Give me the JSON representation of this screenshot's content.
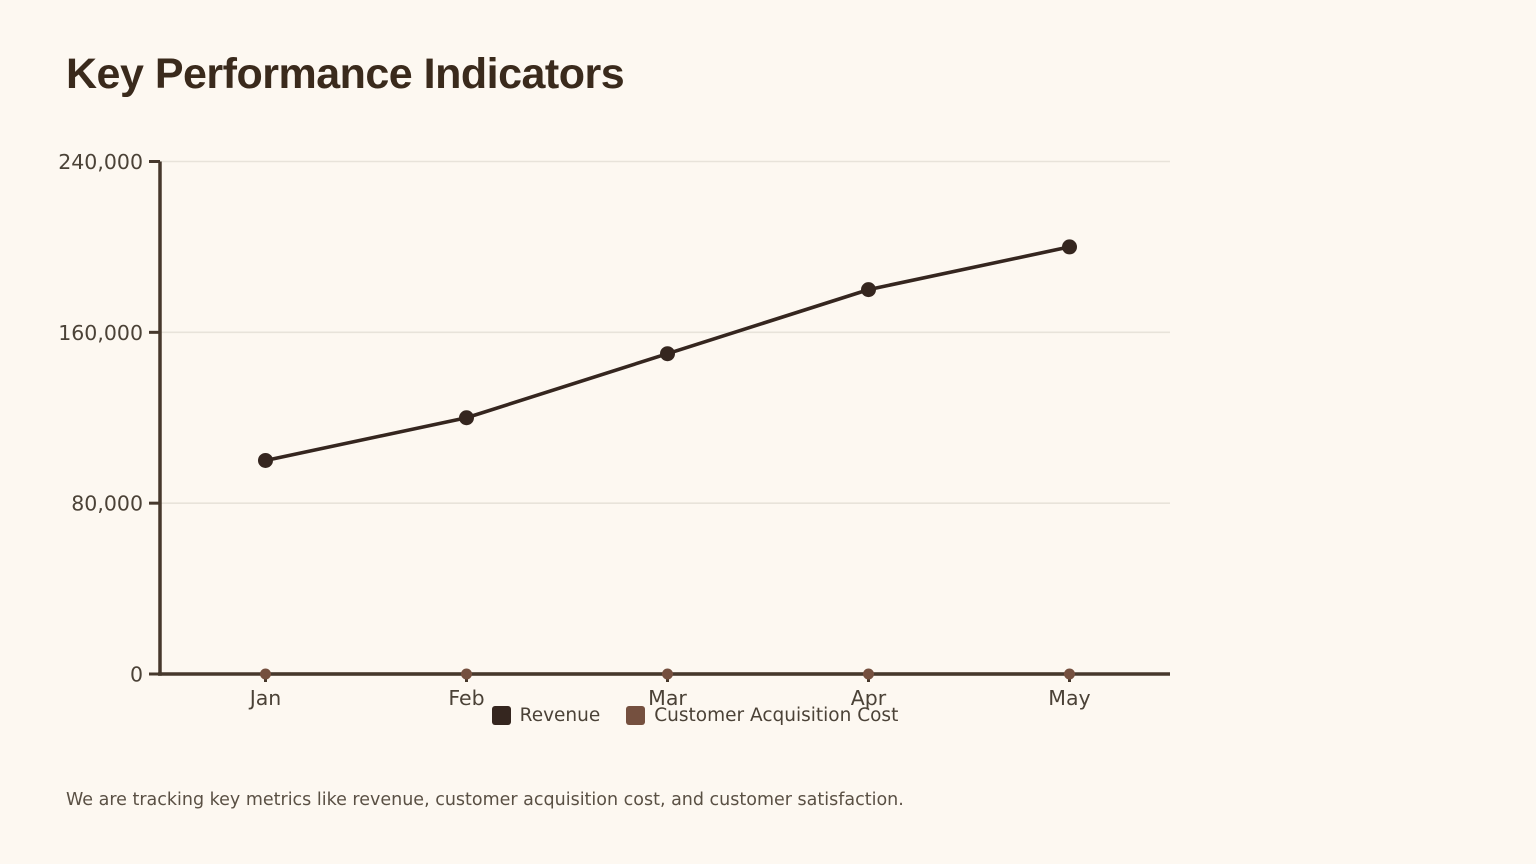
{
  "title": "Key Performance Indicators",
  "caption": "We are tracking key metrics like revenue, customer acquisition cost, and customer satisfaction.",
  "colors": {
    "background": "#fdf8f1",
    "title": "#3a2a1c",
    "axis": "#46382c",
    "grid": "#e8e3da",
    "tick_text": "#4b4237",
    "caption_text": "#5a5044"
  },
  "chart_data": {
    "type": "line",
    "title": "Key Performance Indicators",
    "categories": [
      "Jan",
      "Feb",
      "Mar",
      "Apr",
      "May"
    ],
    "series": [
      {
        "name": "Revenue",
        "color": "#35261f",
        "values": [
          100000,
          120000,
          150000,
          180000,
          200000
        ]
      },
      {
        "name": "Customer Acquisition Cost",
        "color": "#75503f",
        "values": [
          0,
          0,
          0,
          0,
          0
        ],
        "note": "markers plot on the baseline; values indistinguishable from 0 at this axis scale"
      }
    ],
    "ylim": [
      0,
      240000
    ],
    "yticks": [
      0,
      80000,
      160000,
      240000
    ],
    "ytick_labels": [
      "0",
      "80,000",
      "160,000",
      "240,000"
    ],
    "xlabel": "",
    "ylabel": "",
    "grid": "horizontal",
    "legend_position": "bottom"
  }
}
